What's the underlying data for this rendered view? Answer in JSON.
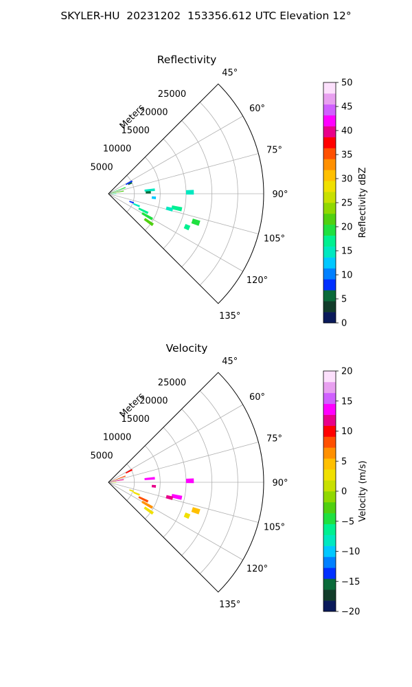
{
  "figure_title": "SKYLER-HU  20231202  153356.612 UTC Elevation 12°",
  "chart_data": [
    {
      "type": "polar-sector",
      "title": "Reflectivity",
      "radial_label": "Meters",
      "r_ticks": [
        5000,
        10000,
        15000,
        20000,
        25000
      ],
      "r_max": 30000,
      "theta_ticks_deg": [
        45,
        60,
        75,
        90,
        105,
        120,
        135
      ],
      "theta_range_deg": [
        45,
        135
      ],
      "grid": true,
      "colorbar": {
        "label": "Reflectivity dBZ",
        "min": 0,
        "max": 50,
        "ticks": [
          0,
          5,
          10,
          15,
          20,
          25,
          30,
          35,
          40,
          45,
          50
        ],
        "colors": [
          "#0a1a5a",
          "#123c2a",
          "#0a6a3a",
          "#0030ff",
          "#0080ff",
          "#00c8ff",
          "#00e8c0",
          "#00f090",
          "#20e040",
          "#50d010",
          "#90d800",
          "#c8e000",
          "#f0e000",
          "#ffc000",
          "#ff9000",
          "#ff5000",
          "#ff0000",
          "#e8008a",
          "#ff00ff",
          "#d060ff",
          "#e8a0f0",
          "#fce0fc"
        ]
      },
      "echoes": [
        {
          "az": 62,
          "r": [
            3800,
            5200
          ],
          "value": 8
        },
        {
          "az": 65,
          "r": [
            4200,
            5000
          ],
          "value": 5
        },
        {
          "az": 70,
          "r": [
            500,
            3500
          ],
          "value": 19
        },
        {
          "az": 80,
          "r": [
            300,
            3000
          ],
          "value": 22
        },
        {
          "az": 85,
          "r": [
            7000,
            9000
          ],
          "value": 14
        },
        {
          "az": 88,
          "r": [
            7200,
            8200
          ],
          "value": 6
        },
        {
          "az": 89,
          "r": [
            15000,
            16500
          ],
          "value": 15
        },
        {
          "az": 90,
          "r": [
            200,
            1500
          ],
          "value": 17
        },
        {
          "az": 95,
          "r": [
            8400,
            9200
          ],
          "value": 13
        },
        {
          "az": 102,
          "r": [
            12500,
            14500
          ],
          "value": 17
        },
        {
          "az": 104,
          "r": [
            11500,
            12800
          ],
          "value": 14
        },
        {
          "az": 110,
          "r": [
            4300,
            5200
          ],
          "value": 9
        },
        {
          "az": 112,
          "r": [
            5200,
            6500
          ],
          "value": 14
        },
        {
          "az": 116,
          "r": [
            6500,
            8500
          ],
          "value": 18
        },
        {
          "az": 120,
          "r": [
            7500,
            9800
          ],
          "value": 20
        },
        {
          "az": 125,
          "r": [
            8500,
            10500
          ],
          "value": 21
        },
        {
          "az": 108,
          "r": [
            17000,
            18500
          ],
          "value": 19
        },
        {
          "az": 113,
          "r": [
            16000,
            17000
          ],
          "value": 17
        }
      ]
    },
    {
      "type": "polar-sector",
      "title": "Velocity",
      "radial_label": "Meters",
      "r_ticks": [
        5000,
        10000,
        15000,
        20000,
        25000
      ],
      "r_max": 30000,
      "theta_ticks_deg": [
        45,
        60,
        75,
        90,
        105,
        120,
        135
      ],
      "theta_range_deg": [
        45,
        135
      ],
      "grid": true,
      "colorbar": {
        "label": "Velocity (m/s)",
        "min": -20,
        "max": 20,
        "ticks": [
          -20,
          -15,
          -10,
          -5,
          0,
          5,
          10,
          15,
          20
        ],
        "colors": [
          "#0a1a5a",
          "#123c2a",
          "#0a6a3a",
          "#0030ff",
          "#0080ff",
          "#00c8ff",
          "#00e8c0",
          "#00f090",
          "#20e040",
          "#50d010",
          "#90d800",
          "#c8e000",
          "#f0e000",
          "#ffc000",
          "#ff9000",
          "#ff5000",
          "#ff0000",
          "#e8008a",
          "#ff00ff",
          "#d060ff",
          "#e8a0f0",
          "#fce0fc"
        ]
      },
      "echoes": [
        {
          "az": 62,
          "r": [
            3800,
            5200
          ],
          "value": 10
        },
        {
          "az": 70,
          "r": [
            500,
            3500
          ],
          "value": 9
        },
        {
          "az": 80,
          "r": [
            300,
            3000
          ],
          "value": 11
        },
        {
          "az": 85,
          "r": [
            7000,
            9000
          ],
          "value": 14
        },
        {
          "az": 90,
          "r": [
            200,
            1500
          ],
          "value": 1
        },
        {
          "az": 95,
          "r": [
            8400,
            9200
          ],
          "value": 12
        },
        {
          "az": 89,
          "r": [
            15000,
            16500
          ],
          "value": 14
        },
        {
          "az": 102,
          "r": [
            12500,
            14500
          ],
          "value": 13
        },
        {
          "az": 104,
          "r": [
            11500,
            12800
          ],
          "value": 12
        },
        {
          "az": 110,
          "r": [
            4300,
            5200
          ],
          "value": 3
        },
        {
          "az": 112,
          "r": [
            5200,
            6500
          ],
          "value": 2
        },
        {
          "az": 116,
          "r": [
            6500,
            8500
          ],
          "value": 8
        },
        {
          "az": 120,
          "r": [
            7500,
            9800
          ],
          "value": 6
        },
        {
          "az": 125,
          "r": [
            8500,
            10500
          ],
          "value": 3
        },
        {
          "az": 108,
          "r": [
            17000,
            18500
          ],
          "value": 5
        },
        {
          "az": 113,
          "r": [
            16000,
            17000
          ],
          "value": 2
        }
      ]
    }
  ]
}
